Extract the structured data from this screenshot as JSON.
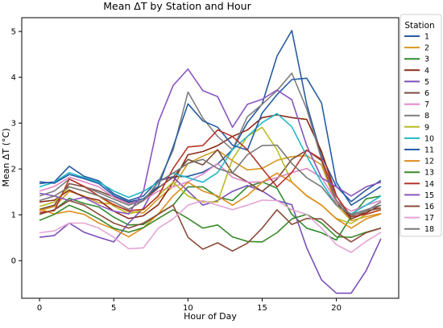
{
  "chart_data": {
    "type": "line",
    "title": "Mean ΔT by Station and Hour",
    "xlabel": "Hour of Day",
    "ylabel": "Mean ΔT (°C)",
    "xlim": [
      -1.2,
      24.2
    ],
    "ylim": [
      -0.82,
      5.3
    ],
    "xticks": [
      0,
      5,
      10,
      15,
      20
    ],
    "yticks": [
      0,
      1,
      2,
      3,
      4,
      5
    ],
    "grid": false,
    "legend": {
      "title": "Station",
      "placement": "outside-right"
    },
    "x": [
      0,
      1,
      2,
      3,
      4,
      5,
      6,
      7,
      8,
      9,
      10,
      11,
      12,
      13,
      14,
      15,
      16,
      17,
      18,
      19,
      20,
      21,
      22,
      23
    ],
    "series": [
      {
        "name": "1",
        "color": "#2a5b9e",
        "values": [
          1.68,
          1.72,
          2.06,
          1.84,
          1.74,
          1.46,
          1.31,
          1.41,
          1.76,
          1.83,
          1.84,
          1.93,
          2.11,
          2.42,
          3.01,
          3.42,
          4.46,
          5.02,
          3.41,
          2.28,
          1.62,
          1.29,
          1.54,
          1.75
        ]
      },
      {
        "name": "2",
        "color": "#d4981e",
        "values": [
          1.09,
          1.18,
          1.51,
          1.41,
          1.26,
          1.23,
          1.07,
          1.04,
          1.35,
          1.62,
          2.12,
          2.28,
          2.41,
          2.18,
          1.98,
          2.01,
          2.19,
          2.27,
          2.29,
          2.09,
          1.22,
          0.87,
          0.96,
          1.03
        ]
      },
      {
        "name": "3",
        "color": "#2e8b2e",
        "values": [
          1.01,
          1.11,
          1.36,
          1.25,
          1.17,
          0.95,
          0.78,
          0.79,
          1.02,
          1.21,
          1.61,
          1.61,
          1.39,
          1.31,
          1.61,
          1.72,
          1.58,
          1.01,
          0.71,
          0.61,
          0.45,
          0.96,
          1.35,
          1.41
        ]
      },
      {
        "name": "4",
        "color": "#8b2a18",
        "values": [
          1.28,
          1.32,
          1.54,
          1.39,
          1.32,
          1.08,
          0.92,
          0.98,
          1.22,
          1.71,
          2.31,
          2.38,
          2.51,
          2.71,
          2.85,
          3.12,
          3.18,
          3.12,
          3.08,
          2.38,
          1.42,
          0.91,
          1.04,
          1.21
        ]
      },
      {
        "name": "5",
        "color": "#7a4fb8",
        "values": [
          0.51,
          0.55,
          0.82,
          0.62,
          0.51,
          0.41,
          0.82,
          1.15,
          1.74,
          1.82,
          1.52,
          1.21,
          1.31,
          1.51,
          1.64,
          1.52,
          1.31,
          1.22,
          0.28,
          -0.42,
          -0.71,
          -0.71,
          -0.22,
          0.48
        ]
      },
      {
        "name": "6",
        "color": "#7a4a3c",
        "values": [
          1.12,
          1.21,
          1.68,
          1.61,
          1.52,
          1.39,
          1.26,
          1.31,
          1.59,
          1.82,
          2.21,
          2.09,
          2.42,
          1.91,
          1.72,
          1.51,
          1.78,
          2.21,
          2.41,
          2.18,
          1.28,
          0.91,
          1.08,
          1.15
        ]
      },
      {
        "name": "7",
        "color": "#de86c6",
        "values": [
          1.52,
          1.62,
          1.82,
          1.72,
          1.61,
          1.38,
          1.24,
          1.31,
          1.52,
          1.61,
          1.72,
          1.89,
          2.12,
          1.82,
          1.71,
          1.72,
          1.81,
          1.92,
          2.01,
          1.82,
          1.28,
          1.08,
          1.21,
          1.31
        ]
      },
      {
        "name": "8",
        "color": "#7e7e7e",
        "values": [
          1.41,
          1.52,
          1.78,
          1.62,
          1.48,
          1.34,
          1.21,
          1.31,
          1.71,
          2.41,
          3.68,
          3.11,
          2.71,
          2.42,
          3.14,
          3.41,
          3.71,
          4.09,
          3.31,
          2.21,
          1.32,
          0.98,
          1.08,
          1.28
        ]
      },
      {
        "name": "9",
        "color": "#b8bb22",
        "values": [
          1.18,
          1.28,
          1.61,
          1.52,
          1.41,
          1.19,
          1.02,
          1.11,
          1.42,
          1.71,
          1.41,
          1.28,
          1.28,
          2.21,
          2.71,
          2.91,
          2.42,
          1.71,
          1.41,
          1.21,
          0.92,
          0.81,
          1.01,
          1.12
        ]
      },
      {
        "name": "10",
        "color": "#21b8c8",
        "values": [
          1.61,
          1.71,
          1.92,
          1.81,
          1.71,
          1.52,
          1.38,
          1.51,
          1.71,
          1.91,
          1.81,
          1.71,
          1.92,
          2.42,
          2.71,
          3.01,
          3.21,
          2.92,
          2.28,
          1.71,
          1.21,
          1.02,
          1.21,
          1.41
        ]
      },
      {
        "name": "11",
        "color": "#245da6",
        "values": [
          1.72,
          1.69,
          1.88,
          1.79,
          1.68,
          1.42,
          1.28,
          1.35,
          1.62,
          2.48,
          3.42,
          3.05,
          2.91,
          2.52,
          2.41,
          3.22,
          3.62,
          3.95,
          3.98,
          3.44,
          1.71,
          1.21,
          1.41,
          1.62
        ]
      },
      {
        "name": "12",
        "color": "#e08c1b",
        "values": [
          1.12,
          1.02,
          1.08,
          1.01,
          0.82,
          0.69,
          0.52,
          0.72,
          1.02,
          1.41,
          1.71,
          1.52,
          1.41,
          1.21,
          1.42,
          1.71,
          1.91,
          1.71,
          1.42,
          1.21,
          0.91,
          0.71,
          0.91,
          1.02
        ]
      },
      {
        "name": "13",
        "color": "#3a8a2a",
        "values": [
          0.88,
          1.01,
          1.21,
          1.08,
          0.91,
          0.71,
          0.62,
          0.72,
          0.92,
          1.11,
          0.92,
          0.71,
          0.78,
          0.52,
          0.42,
          0.41,
          0.61,
          0.91,
          1.01,
          0.82,
          0.52,
          0.51,
          0.62,
          0.71
        ]
      },
      {
        "name": "14",
        "color": "#b8342a",
        "values": [
          1.05,
          1.09,
          1.78,
          1.62,
          1.41,
          1.22,
          1.09,
          1.12,
          1.41,
          2.01,
          2.48,
          2.51,
          2.85,
          2.71,
          2.42,
          2.01,
          1.61,
          1.92,
          2.41,
          2.21,
          1.41,
          0.96,
          1.01,
          1.11
        ]
      },
      {
        "name": "15",
        "color": "#8a55c0",
        "values": [
          1.47,
          1.41,
          1.31,
          1.38,
          1.21,
          1.08,
          1.02,
          1.51,
          3.02,
          3.82,
          4.18,
          3.71,
          3.58,
          2.91,
          3.41,
          3.52,
          3.72,
          3.51,
          2.51,
          1.81,
          1.61,
          1.41,
          1.61,
          1.71
        ]
      },
      {
        "name": "16",
        "color": "#8b4a3a",
        "values": [
          1.01,
          1.11,
          1.31,
          1.21,
          1.01,
          0.82,
          0.71,
          0.82,
          1.01,
          1.21,
          0.51,
          0.25,
          0.39,
          0.21,
          0.38,
          0.71,
          1.11,
          0.79,
          0.92,
          0.91,
          0.62,
          0.41,
          0.61,
          0.71
        ]
      },
      {
        "name": "17",
        "color": "#e4a4d6",
        "values": [
          0.61,
          0.65,
          0.82,
          0.82,
          0.71,
          0.51,
          0.26,
          0.28,
          0.71,
          0.91,
          1.21,
          1.31,
          1.21,
          1.11,
          1.21,
          1.32,
          1.31,
          1.11,
          1.01,
          0.71,
          0.35,
          0.18,
          0.42,
          0.62
        ]
      },
      {
        "name": "18",
        "color": "#787878",
        "values": [
          1.31,
          1.41,
          1.61,
          1.52,
          1.41,
          1.28,
          1.12,
          1.31,
          1.71,
          1.91,
          2.12,
          2.21,
          2.01,
          1.91,
          2.31,
          2.51,
          2.52,
          2.12,
          1.81,
          1.61,
          1.21,
          1.01,
          1.11,
          1.21
        ]
      }
    ]
  }
}
